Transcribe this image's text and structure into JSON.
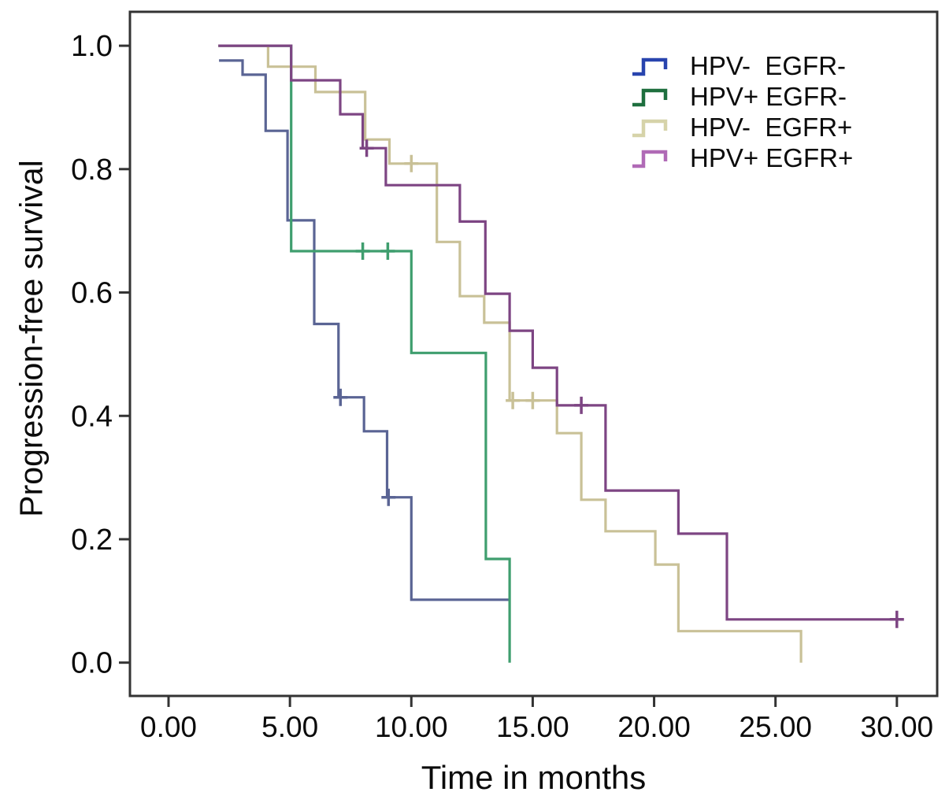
{
  "chart_data": {
    "type": "line",
    "subtype": "kaplan-meier-step-curves",
    "title": "",
    "xlabel": "Time in months",
    "ylabel": "Progression-free survival",
    "xlim": [
      -1.59,
      31.66
    ],
    "ylim": [
      -0.054,
      1.055
    ],
    "grid": false,
    "xticks": {
      "values": [
        0,
        5,
        10,
        15,
        20,
        25,
        30
      ],
      "labels": [
        "0.00",
        "5.00",
        "10.00",
        "15.00",
        "20.00",
        "25.00",
        "30.00"
      ]
    },
    "yticks": {
      "values": [
        0.0,
        0.2,
        0.4,
        0.6,
        0.8,
        1.0
      ],
      "labels": [
        "0.0",
        "0.2",
        "0.4",
        "0.6",
        "0.8",
        "1.0"
      ]
    },
    "legend": {
      "position": "top-right"
    },
    "style": {
      "axis_color": "#333333",
      "text_color": "#0b0b0b",
      "background": "#ffffff"
    },
    "series": [
      {
        "id": "hpv-neg-egfr-neg",
        "legend_label": "HPV-  EGFR-",
        "legend_color": "#2844ae",
        "color": "#5a6494",
        "points": [
          [
            2.08,
            0.976
          ],
          [
            3.05,
            0.976
          ],
          [
            3.05,
            0.953
          ],
          [
            4.0,
            0.953
          ],
          [
            4.0,
            0.862
          ],
          [
            4.9,
            0.862
          ],
          [
            4.9,
            0.717
          ],
          [
            6.0,
            0.717
          ],
          [
            6.0,
            0.549
          ],
          [
            7.0,
            0.549
          ],
          [
            7.0,
            0.43
          ],
          [
            8.05,
            0.43
          ],
          [
            8.05,
            0.375
          ],
          [
            9.0,
            0.375
          ],
          [
            9.0,
            0.268
          ],
          [
            10.0,
            0.268
          ],
          [
            10.0,
            0.102
          ],
          [
            14.0,
            0.102
          ]
        ],
        "censors": [
          [
            7.08,
            0.43
          ],
          [
            9.06,
            0.268
          ]
        ]
      },
      {
        "id": "hpv-pos-egfr-neg",
        "legend_label": "HPV+ EGFR-",
        "legend_color": "#1e6f3e",
        "color": "#3f9e6e",
        "points": [
          [
            2.05,
            1.0
          ],
          [
            5.05,
            1.0
          ],
          [
            5.05,
            0.667
          ],
          [
            10.0,
            0.667
          ],
          [
            10.0,
            0.502
          ],
          [
            13.07,
            0.502
          ],
          [
            13.07,
            0.168
          ],
          [
            14.05,
            0.168
          ],
          [
            14.05,
            0.0
          ]
        ],
        "censors": [
          [
            8.0,
            0.667
          ],
          [
            9.03,
            0.667
          ]
        ]
      },
      {
        "id": "hpv-neg-egfr-pos",
        "legend_label": "HPV-  EGFR+",
        "legend_color": "#d6d3a9",
        "color": "#c9c197",
        "points": [
          [
            2.05,
            1.0
          ],
          [
            4.1,
            1.0
          ],
          [
            4.1,
            0.966
          ],
          [
            6.05,
            0.966
          ],
          [
            6.05,
            0.925
          ],
          [
            8.1,
            0.925
          ],
          [
            8.1,
            0.848
          ],
          [
            9.1,
            0.848
          ],
          [
            9.1,
            0.809
          ],
          [
            11.05,
            0.809
          ],
          [
            11.05,
            0.682
          ],
          [
            12.0,
            0.682
          ],
          [
            12.0,
            0.594
          ],
          [
            13.0,
            0.594
          ],
          [
            13.0,
            0.551
          ],
          [
            14.05,
            0.551
          ],
          [
            14.05,
            0.425
          ],
          [
            16.0,
            0.425
          ],
          [
            16.0,
            0.372
          ],
          [
            17.0,
            0.372
          ],
          [
            17.0,
            0.264
          ],
          [
            18.0,
            0.264
          ],
          [
            18.0,
            0.213
          ],
          [
            20.05,
            0.213
          ],
          [
            20.05,
            0.159
          ],
          [
            21.0,
            0.159
          ],
          [
            21.0,
            0.051
          ],
          [
            26.05,
            0.051
          ],
          [
            26.05,
            0.0
          ]
        ],
        "censors": [
          [
            10.0,
            0.809
          ],
          [
            14.18,
            0.425
          ],
          [
            15.0,
            0.425
          ]
        ]
      },
      {
        "id": "hpv-pos-egfr-pos",
        "legend_label": "HPV+ EGFR+",
        "legend_color": "#b06ab6",
        "color": "#7d4583",
        "points": [
          [
            2.05,
            1.0
          ],
          [
            5.05,
            1.0
          ],
          [
            5.05,
            0.944
          ],
          [
            7.07,
            0.944
          ],
          [
            7.07,
            0.889
          ],
          [
            8.0,
            0.889
          ],
          [
            8.0,
            0.834
          ],
          [
            8.95,
            0.834
          ],
          [
            8.95,
            0.774
          ],
          [
            12.0,
            0.774
          ],
          [
            12.0,
            0.715
          ],
          [
            13.05,
            0.715
          ],
          [
            13.05,
            0.598
          ],
          [
            14.05,
            0.598
          ],
          [
            14.05,
            0.538
          ],
          [
            15.0,
            0.538
          ],
          [
            15.0,
            0.478
          ],
          [
            16.0,
            0.478
          ],
          [
            16.0,
            0.417
          ],
          [
            18.0,
            0.417
          ],
          [
            18.0,
            0.279
          ],
          [
            21.0,
            0.279
          ],
          [
            21.0,
            0.209
          ],
          [
            23.0,
            0.209
          ],
          [
            23.0,
            0.07
          ],
          [
            30.2,
            0.07
          ]
        ],
        "censors": [
          [
            8.16,
            0.834
          ],
          [
            17.0,
            0.417
          ],
          [
            30.0,
            0.07
          ]
        ]
      }
    ]
  }
}
